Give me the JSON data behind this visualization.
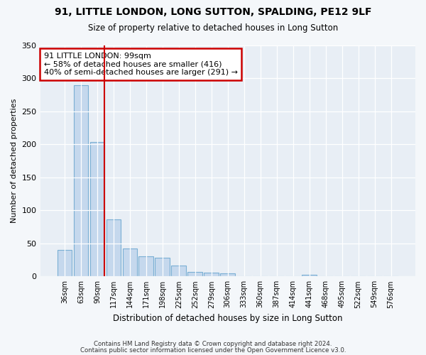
{
  "title_line1": "91, LITTLE LONDON, LONG SUTTON, SPALDING, PE12 9LF",
  "title_line2": "Size of property relative to detached houses in Long Sutton",
  "xlabel": "Distribution of detached houses by size in Long Sutton",
  "ylabel": "Number of detached properties",
  "categories": [
    "36sqm",
    "63sqm",
    "90sqm",
    "117sqm",
    "144sqm",
    "171sqm",
    "198sqm",
    "225sqm",
    "252sqm",
    "279sqm",
    "306sqm",
    "333sqm",
    "360sqm",
    "387sqm",
    "414sqm",
    "441sqm",
    "468sqm",
    "495sqm",
    "522sqm",
    "549sqm",
    "576sqm"
  ],
  "values": [
    40,
    290,
    204,
    86,
    42,
    30,
    28,
    17,
    7,
    6,
    5,
    0,
    0,
    0,
    0,
    3,
    0,
    0,
    0,
    0,
    0
  ],
  "bar_color": "#c5d8ed",
  "bar_edge_color": "#7aafd4",
  "vline_bin_index": 2,
  "annotation_text": "91 LITTLE LONDON: 99sqm\n← 58% of detached houses are smaller (416)\n40% of semi-detached houses are larger (291) →",
  "annotation_box_color": "#ffffff",
  "annotation_box_edge_color": "#cc0000",
  "ylim": [
    0,
    350
  ],
  "yticks": [
    0,
    50,
    100,
    150,
    200,
    250,
    300,
    350
  ],
  "footer_line1": "Contains HM Land Registry data © Crown copyright and database right 2024.",
  "footer_line2": "Contains public sector information licensed under the Open Government Licence v3.0.",
  "bg_color": "#f4f7fa",
  "plot_bg_color": "#e8eef5"
}
